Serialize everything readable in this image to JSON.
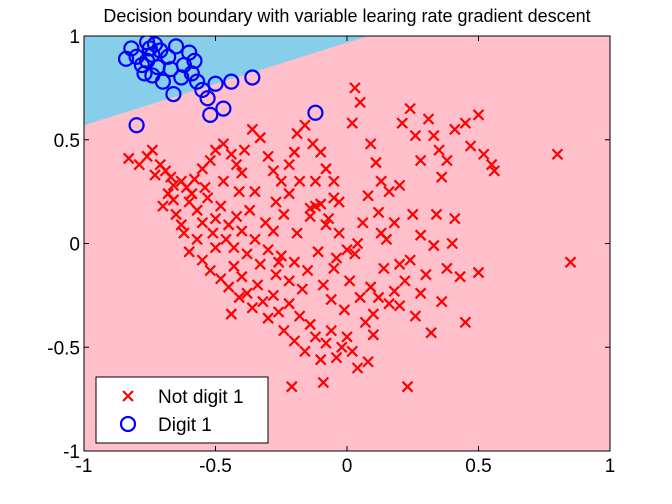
{
  "chart_data": {
    "type": "scatter",
    "title": "Decision boundary with variable learing rate gradient descent",
    "xlabel": "",
    "ylabel": "",
    "xlim": [
      -1,
      1
    ],
    "ylim": [
      -1,
      1
    ],
    "x_ticks": [
      -1,
      -0.5,
      0,
      0.5,
      1
    ],
    "y_ticks": [
      -1,
      -0.5,
      0,
      0.5,
      1
    ],
    "x_tick_labels": [
      "-1",
      "-0.5",
      "0",
      "0.5",
      "1"
    ],
    "y_tick_labels": [
      "-1",
      "-0.5",
      "0",
      "0.5",
      "1"
    ],
    "grid": false,
    "legend_position": "bottom-left",
    "decision_boundary": {
      "line": [
        [
          -1,
          0.57
        ],
        [
          0.08,
          1.0
        ]
      ],
      "above_region_color": "#87CEEB",
      "below_region_color": "#FFC0CB"
    },
    "series": [
      {
        "name": "Not digit 1",
        "marker": "x",
        "color": "#FF0000",
        "points": [
          [
            -0.83,
            0.41
          ],
          [
            -0.74,
            0.45
          ],
          [
            -0.76,
            0.42
          ],
          [
            -0.71,
            0.38
          ],
          [
            -0.79,
            0.38
          ],
          [
            -0.69,
            0.35
          ],
          [
            -0.67,
            0.32
          ],
          [
            -0.63,
            0.3
          ],
          [
            -0.66,
            0.28
          ],
          [
            -0.61,
            0.27
          ],
          [
            -0.58,
            0.31
          ],
          [
            -0.55,
            0.36
          ],
          [
            -0.52,
            0.4
          ],
          [
            -0.5,
            0.45
          ],
          [
            -0.47,
            0.48
          ],
          [
            -0.44,
            0.43
          ],
          [
            -0.42,
            0.38
          ],
          [
            -0.4,
            0.34
          ],
          [
            -0.39,
            0.45
          ],
          [
            -0.36,
            0.55
          ],
          [
            -0.33,
            0.51
          ],
          [
            -0.3,
            0.42
          ],
          [
            -0.28,
            0.35
          ],
          [
            -0.25,
            0.3
          ],
          [
            -0.22,
            0.38
          ],
          [
            -0.2,
            0.44
          ],
          [
            -0.19,
            0.53
          ],
          [
            -0.16,
            0.57
          ],
          [
            -0.13,
            0.48
          ],
          [
            -0.1,
            0.44
          ],
          [
            -0.08,
            0.36
          ],
          [
            -0.05,
            0.3
          ],
          [
            -0.03,
            0.2
          ],
          [
            0.02,
            0.58
          ],
          [
            0.03,
            0.75
          ],
          [
            0.05,
            0.68
          ],
          [
            0.09,
            0.48
          ],
          [
            0.11,
            0.39
          ],
          [
            0.13,
            0.3
          ],
          [
            0.16,
            0.25
          ],
          [
            0.2,
            0.28
          ],
          [
            0.21,
            0.58
          ],
          [
            0.24,
            0.65
          ],
          [
            0.26,
            0.52
          ],
          [
            0.28,
            0.4
          ],
          [
            0.31,
            0.6
          ],
          [
            0.33,
            0.52
          ],
          [
            0.35,
            0.45
          ],
          [
            0.38,
            0.4
          ],
          [
            0.41,
            0.55
          ],
          [
            0.45,
            0.58
          ],
          [
            0.47,
            0.47
          ],
          [
            0.5,
            0.62
          ],
          [
            0.52,
            0.43
          ],
          [
            0.55,
            0.38
          ],
          [
            0.56,
            0.35
          ],
          [
            0.8,
            0.43
          ],
          [
            0.85,
            -0.09
          ],
          [
            -0.7,
            0.18
          ],
          [
            -0.68,
            0.24
          ],
          [
            -0.65,
            0.14
          ],
          [
            -0.63,
            0.09
          ],
          [
            -0.6,
            0.2
          ],
          [
            -0.57,
            0.16
          ],
          [
            -0.55,
            0.1
          ],
          [
            -0.53,
            0.22
          ],
          [
            -0.51,
            0.05
          ],
          [
            -0.5,
            0.12
          ],
          [
            -0.48,
            0.18
          ],
          [
            -0.46,
            0.02
          ],
          [
            -0.45,
            0.09
          ],
          [
            -0.43,
            -0.02
          ],
          [
            -0.42,
            0.13
          ],
          [
            -0.4,
            0.06
          ],
          [
            -0.38,
            -0.05
          ],
          [
            -0.37,
            0.16
          ],
          [
            -0.35,
            0.02
          ],
          [
            -0.33,
            -0.1
          ],
          [
            -0.31,
            0.1
          ],
          [
            -0.3,
            -0.03
          ],
          [
            -0.28,
            0.06
          ],
          [
            -0.27,
            -0.15
          ],
          [
            -0.25,
            -0.06
          ],
          [
            -0.24,
            0.14
          ],
          [
            -0.22,
            -0.18
          ],
          [
            -0.2,
            -0.09
          ],
          [
            -0.19,
            0.05
          ],
          [
            -0.17,
            -0.22
          ],
          [
            -0.15,
            -0.13
          ],
          [
            -0.14,
            0.17
          ],
          [
            -0.12,
            0.18
          ],
          [
            -0.11,
            -0.04
          ],
          [
            -0.09,
            -0.2
          ],
          [
            -0.08,
            0.09
          ],
          [
            -0.06,
            -0.27
          ],
          [
            -0.05,
            -0.12
          ],
          [
            -0.03,
            0.05
          ],
          [
            -0.01,
            -0.32
          ],
          [
            0.01,
            -0.18
          ],
          [
            0.03,
            -0.05
          ],
          [
            0.05,
            -0.26
          ],
          [
            0.07,
            -0.38
          ],
          [
            0.09,
            -0.21
          ],
          [
            0.1,
            -0.34
          ],
          [
            0.12,
            -0.26
          ],
          [
            0.14,
            -0.12
          ],
          [
            0.16,
            -0.29
          ],
          [
            0.18,
            -0.23
          ],
          [
            0.2,
            -0.3
          ],
          [
            0.22,
            -0.18
          ],
          [
            0.24,
            -0.08
          ],
          [
            0.26,
            -0.35
          ],
          [
            0.28,
            -0.24
          ],
          [
            0.3,
            -0.15
          ],
          [
            0.33,
            -0.01
          ],
          [
            0.36,
            -0.28
          ],
          [
            0.38,
            -0.12
          ],
          [
            0.4,
            0.0
          ],
          [
            0.43,
            -0.16
          ],
          [
            0.45,
            -0.38
          ],
          [
            0.5,
            -0.14
          ],
          [
            0.32,
            -0.43
          ],
          [
            -0.6,
            -0.04
          ],
          [
            -0.57,
            0.02
          ],
          [
            -0.55,
            -0.08
          ],
          [
            -0.52,
            -0.13
          ],
          [
            -0.5,
            -0.02
          ],
          [
            -0.48,
            -0.17
          ],
          [
            -0.45,
            -0.21
          ],
          [
            -0.43,
            -0.11
          ],
          [
            -0.41,
            -0.26
          ],
          [
            -0.4,
            -0.16
          ],
          [
            -0.38,
            -0.24
          ],
          [
            -0.36,
            -0.31
          ],
          [
            -0.34,
            -0.2
          ],
          [
            -0.32,
            -0.28
          ],
          [
            -0.3,
            -0.36
          ],
          [
            -0.28,
            -0.25
          ],
          [
            -0.26,
            -0.33
          ],
          [
            -0.24,
            -0.42
          ],
          [
            -0.22,
            -0.29
          ],
          [
            -0.2,
            -0.47
          ],
          [
            -0.18,
            -0.35
          ],
          [
            -0.16,
            -0.52
          ],
          [
            -0.14,
            -0.39
          ],
          [
            -0.12,
            -0.45
          ],
          [
            -0.1,
            -0.56
          ],
          [
            -0.08,
            -0.48
          ],
          [
            -0.06,
            -0.42
          ],
          [
            -0.04,
            -0.55
          ],
          [
            -0.02,
            -0.5
          ],
          [
            0.0,
            -0.45
          ],
          [
            0.02,
            -0.52
          ],
          [
            0.04,
            -0.6
          ],
          [
            0.08,
            -0.57
          ],
          [
            0.1,
            -0.44
          ],
          [
            -0.21,
            -0.69
          ],
          [
            -0.09,
            -0.67
          ],
          [
            0.23,
            -0.69
          ],
          [
            0.0,
            -0.03
          ],
          [
            -0.44,
            -0.34
          ],
          [
            -0.26,
            -0.09
          ],
          [
            -0.62,
            0.05
          ],
          [
            -0.66,
            0.21
          ],
          [
            -0.73,
            0.33
          ],
          [
            -0.59,
            0.24
          ],
          [
            -0.54,
            0.27
          ],
          [
            -0.47,
            0.3
          ],
          [
            -0.41,
            0.25
          ],
          [
            -0.35,
            0.25
          ],
          [
            -0.27,
            0.2
          ],
          [
            -0.22,
            0.24
          ],
          [
            -0.18,
            0.3
          ],
          [
            -0.12,
            0.3
          ],
          [
            -0.05,
            0.22
          ],
          [
            0.06,
            0.1
          ],
          [
            0.08,
            0.23
          ],
          [
            0.12,
            0.15
          ],
          [
            0.15,
            0.02
          ],
          [
            0.18,
            0.1
          ],
          [
            0.25,
            0.14
          ],
          [
            0.28,
            0.04
          ],
          [
            -0.14,
            0.13
          ],
          [
            -0.1,
            0.19
          ],
          [
            -0.07,
            0.12
          ],
          [
            -0.04,
            -0.07
          ],
          [
            0.04,
            0.0
          ],
          [
            0.13,
            0.05
          ],
          [
            0.2,
            -0.1
          ],
          [
            0.34,
            0.14
          ],
          [
            0.36,
            0.32
          ],
          [
            0.41,
            0.12
          ]
        ]
      },
      {
        "name": "Digit 1",
        "marker": "o",
        "color": "#0000FF",
        "points": [
          [
            -0.84,
            0.89
          ],
          [
            -0.82,
            0.94
          ],
          [
            -0.8,
            0.9
          ],
          [
            -0.78,
            0.86
          ],
          [
            -0.77,
            0.82
          ],
          [
            -0.76,
            0.88
          ],
          [
            -0.75,
            0.94
          ],
          [
            -0.74,
            0.91
          ],
          [
            -0.73,
            0.96
          ],
          [
            -0.72,
            0.85
          ],
          [
            -0.71,
            0.93
          ],
          [
            -0.7,
            0.78
          ],
          [
            -0.68,
            0.9
          ],
          [
            -0.67,
            0.84
          ],
          [
            -0.65,
            0.95
          ],
          [
            -0.63,
            0.8
          ],
          [
            -0.62,
            0.86
          ],
          [
            -0.6,
            0.92
          ],
          [
            -0.59,
            0.82
          ],
          [
            -0.57,
            0.78
          ],
          [
            -0.55,
            0.74
          ],
          [
            -0.53,
            0.7
          ],
          [
            -0.52,
            0.62
          ],
          [
            -0.5,
            0.77
          ],
          [
            -0.47,
            0.65
          ],
          [
            -0.44,
            0.78
          ],
          [
            -0.36,
            0.8
          ],
          [
            -0.12,
            0.63
          ],
          [
            -0.8,
            0.57
          ],
          [
            -0.74,
            0.81
          ],
          [
            -0.66,
            0.72
          ],
          [
            -0.58,
            0.88
          ],
          [
            -0.76,
            0.97
          ]
        ]
      }
    ]
  }
}
